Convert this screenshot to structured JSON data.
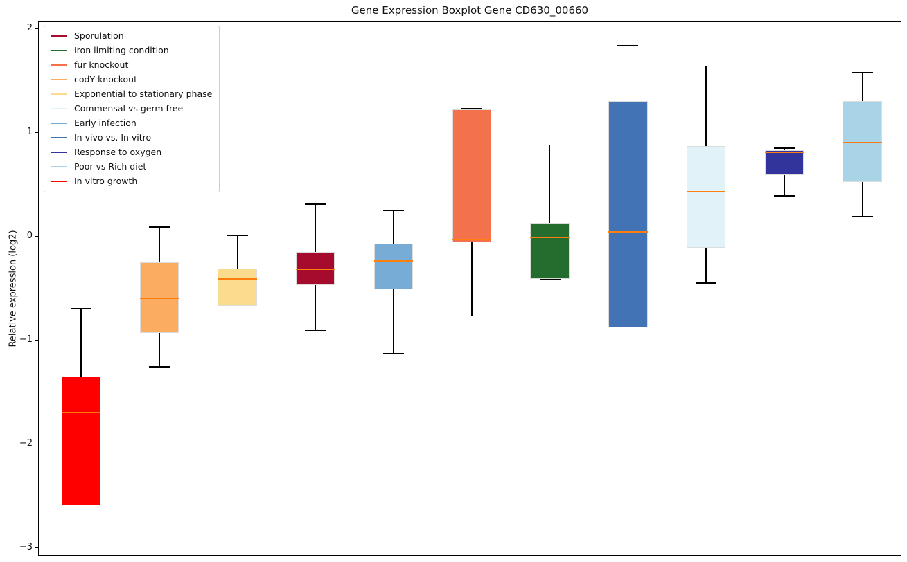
{
  "title": "Gene Expression Boxplot Gene CD630_00660",
  "y_axis": {
    "label": "Relative expression (log2)",
    "ticks": [
      {
        "label": "2",
        "value": 2
      },
      {
        "label": "1",
        "value": 1
      },
      {
        "label": "0",
        "value": 0
      },
      {
        "label": "−1",
        "value": -1
      },
      {
        "label": "−2",
        "value": -2
      },
      {
        "label": "−3",
        "value": -3
      }
    ]
  },
  "legend": {
    "position": "upper-left",
    "items": [
      {
        "label": "Sporulation",
        "color": "#A60A2D"
      },
      {
        "label": "Iron limiting condition",
        "color": "#256C2F"
      },
      {
        "label": "fur knockout",
        "color": "#F3714B"
      },
      {
        "label": "codY knockout",
        "color": "#FCAC60"
      },
      {
        "label": "Exponential to stationary phase",
        "color": "#FBDC8F"
      },
      {
        "label": "Commensal vs germ free",
        "color": "#E2F2F9"
      },
      {
        "label": "Early infection",
        "color": "#76ACD5"
      },
      {
        "label": "In vivo vs. In vitro",
        "color": "#4273B4"
      },
      {
        "label": "Response to oxygen",
        "color": "#32339B"
      },
      {
        "label": "Poor vs Rich diet",
        "color": "#A9D4E8"
      },
      {
        "label": "In vitro growth",
        "color": "#FE0000"
      }
    ]
  },
  "chart_data": {
    "type": "boxplot",
    "title": "Gene Expression Boxplot Gene CD630_00660",
    "ylabel": "Relative expression (log2)",
    "ylim": [
      -3.08,
      2.07
    ],
    "xlim": [
      0.45,
      11.5
    ],
    "grid": false,
    "legend_position": "upper left",
    "median_color": "#FF7F0E",
    "whisker_color": "#000000",
    "box_width_units": 0.5,
    "series": [
      {
        "name": "In vitro growth",
        "position": 1,
        "color": "#FE0000",
        "min": -2.59,
        "q1": -2.59,
        "median": -1.7,
        "q3": -1.35,
        "max": -0.7
      },
      {
        "name": "codY knockout",
        "position": 2,
        "color": "#FCAC60",
        "min": -1.26,
        "q1": -0.93,
        "median": -0.6,
        "q3": -0.25,
        "max": 0.09
      },
      {
        "name": "Exponential to stationary phase",
        "position": 3,
        "color": "#FBDC8F",
        "min": -0.67,
        "q1": -0.67,
        "median": -0.41,
        "q3": -0.31,
        "max": 0.01
      },
      {
        "name": "Sporulation",
        "position": 4,
        "color": "#A60A2D",
        "min": -0.91,
        "q1": -0.47,
        "median": -0.32,
        "q3": -0.15,
        "max": 0.31
      },
      {
        "name": "Early infection",
        "position": 5,
        "color": "#76ACD5",
        "min": -1.13,
        "q1": -0.51,
        "median": -0.24,
        "q3": -0.07,
        "max": 0.25
      },
      {
        "name": "fur knockout",
        "position": 6,
        "color": "#F3714B",
        "min": -0.77,
        "q1": -0.06,
        "median": -0.03,
        "q3": 1.22,
        "max": 1.23
      },
      {
        "name": "Iron limiting condition",
        "position": 7,
        "color": "#256C2F",
        "min": -0.41,
        "q1": -0.41,
        "median": -0.01,
        "q3": 0.13,
        "max": 0.88
      },
      {
        "name": "In vivo vs. In vitro",
        "position": 8,
        "color": "#4273B4",
        "min": -2.85,
        "q1": -0.88,
        "median": 0.04,
        "q3": 1.3,
        "max": 1.84
      },
      {
        "name": "Commensal vs germ free",
        "position": 9,
        "color": "#E2F2F9",
        "min": -0.45,
        "q1": -0.11,
        "median": 0.43,
        "q3": 0.87,
        "max": 1.64
      },
      {
        "name": "Response to oxygen",
        "position": 10,
        "color": "#32339B",
        "min": 0.39,
        "q1": 0.59,
        "median": 0.81,
        "q3": 0.83,
        "max": 0.85
      },
      {
        "name": "Poor vs Rich diet",
        "position": 11,
        "color": "#A9D4E8",
        "min": 0.19,
        "q1": 0.52,
        "median": 0.9,
        "q3": 1.3,
        "max": 1.58
      }
    ]
  }
}
